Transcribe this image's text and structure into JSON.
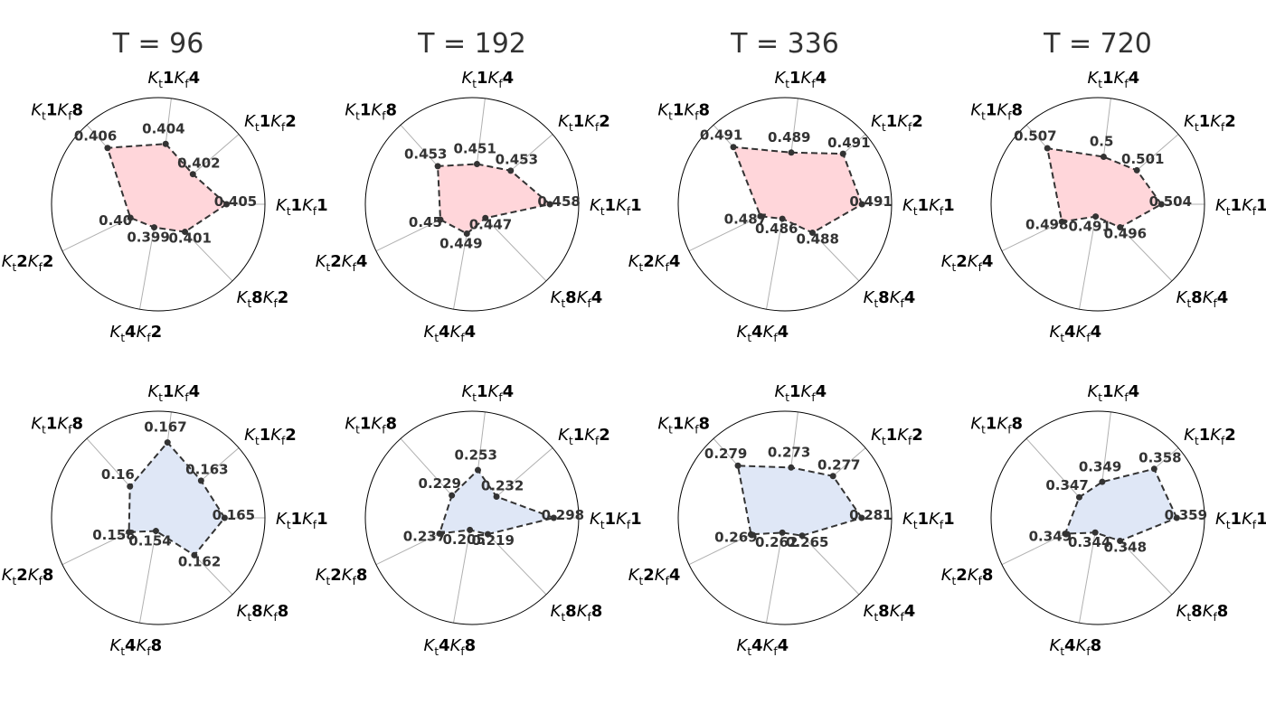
{
  "colors": {
    "top_fill": "#ffd6da",
    "bottom_fill": "#dfe7f6",
    "line": "#333333",
    "grid": "#b0b0b0"
  },
  "chart_data": [
    {
      "type": "radar",
      "title": "T = 96",
      "axes": [
        "K_t1K_f1",
        "K_t1K_f2",
        "K_t1K_f4",
        "K_t1K_f8",
        "K_t2K_f2",
        "K_t4K_f2",
        "K_t8K_f2"
      ],
      "values": [
        0.405,
        0.402,
        0.404,
        0.406,
        0.4,
        0.399,
        0.401
      ],
      "labels": [
        "0.405",
        "0.402",
        "0.404",
        "0.406",
        "0.40",
        "0.399",
        "0.401"
      ],
      "rlim": [
        0.397,
        0.407
      ],
      "fill": "top"
    },
    {
      "type": "radar",
      "title": "T = 192",
      "axes": [
        "K_t1K_f1",
        "K_t1K_f2",
        "K_t1K_f4",
        "K_t1K_f8",
        "K_t2K_f4",
        "K_t4K_f4",
        "K_t8K_f4"
      ],
      "values": [
        0.458,
        0.453,
        0.451,
        0.453,
        0.45,
        0.449,
        0.447
      ],
      "labels": [
        "0.458",
        "0.453",
        "0.451",
        "0.453",
        "0.45",
        "0.449",
        "0.447"
      ],
      "rlim": [
        0.445,
        0.459
      ],
      "fill": "top"
    },
    {
      "type": "radar",
      "title": "T = 336",
      "axes": [
        "K_t1K_f1",
        "K_t1K_f2",
        "K_t1K_f4",
        "K_t1K_f8",
        "K_t2K_f4",
        "K_t4K_f4",
        "K_t8K_f4"
      ],
      "values": [
        0.491,
        0.491,
        0.489,
        0.491,
        0.487,
        0.486,
        0.488
      ],
      "labels": [
        "0.491",
        "0.491",
        "0.489",
        "0.491",
        "0.487",
        "0.486",
        "0.488"
      ],
      "rlim": [
        0.4855,
        0.4915
      ],
      "fill": "top"
    },
    {
      "type": "radar",
      "title": "T = 720",
      "axes": [
        "K_t1K_f1",
        "K_t1K_f2",
        "K_t1K_f4",
        "K_t1K_f8",
        "K_t2K_f4",
        "K_t4K_f4",
        "K_t8K_f4"
      ],
      "values": [
        0.504,
        0.501,
        0.5,
        0.507,
        0.498,
        0.491,
        0.496
      ],
      "labels": [
        "0.504",
        "0.501",
        "0.5",
        "0.507",
        "0.498",
        "0.491",
        "0.496"
      ],
      "rlim": [
        0.49,
        0.509
      ],
      "fill": "top"
    },
    {
      "type": "radar",
      "title": "",
      "axes": [
        "K_t1K_f1",
        "K_t1K_f2",
        "K_t1K_f4",
        "K_t1K_f8",
        "K_t2K_f8",
        "K_t4K_f8",
        "K_t8K_f8"
      ],
      "values": [
        0.165,
        0.163,
        0.167,
        0.16,
        0.158,
        0.154,
        0.162
      ],
      "labels": [
        "0.165",
        "0.163",
        "0.167",
        "0.16",
        "0.158",
        "0.154",
        "0.162"
      ],
      "rlim": [
        0.153,
        0.1685
      ],
      "fill": "bottom"
    },
    {
      "type": "radar",
      "title": "",
      "axes": [
        "K_t1K_f1",
        "K_t1K_f2",
        "K_t1K_f4",
        "K_t1K_f8",
        "K_t2K_f8",
        "K_t4K_f8",
        "K_t8K_f8"
      ],
      "values": [
        0.298,
        0.232,
        0.253,
        0.229,
        0.237,
        0.205,
        0.219
      ],
      "labels": [
        "0.298",
        "0.232",
        "0.253",
        "0.229",
        "0.237",
        "0.205",
        "0.219"
      ],
      "rlim": [
        0.2,
        0.3
      ],
      "fill": "bottom"
    },
    {
      "type": "radar",
      "title": "",
      "axes": [
        "K_t1K_f1",
        "K_t1K_f2",
        "K_t1K_f4",
        "K_t1K_f8",
        "K_t2K_f4",
        "K_t4K_f4",
        "K_t8K_f4"
      ],
      "values": [
        0.281,
        0.277,
        0.273,
        0.279,
        0.269,
        0.262,
        0.265
      ],
      "labels": [
        "0.281",
        "0.277",
        "0.273",
        "0.279",
        "0.269",
        "0.262",
        "0.265"
      ],
      "rlim": [
        0.26,
        0.283
      ],
      "fill": "bottom"
    },
    {
      "type": "radar",
      "title": "",
      "axes": [
        "K_t1K_f1",
        "K_t1K_f2",
        "K_t1K_f4",
        "K_t1K_f8",
        "K_t2K_f8",
        "K_t4K_f8",
        "K_t8K_f8"
      ],
      "values": [
        0.359,
        0.358,
        0.349,
        0.347,
        0.349,
        0.344,
        0.348
      ],
      "labels": [
        "0.359",
        "0.358",
        "0.349",
        "0.347",
        "0.349",
        "0.344",
        "0.348"
      ],
      "rlim": [
        0.3425,
        0.36
      ],
      "fill": "bottom"
    }
  ]
}
